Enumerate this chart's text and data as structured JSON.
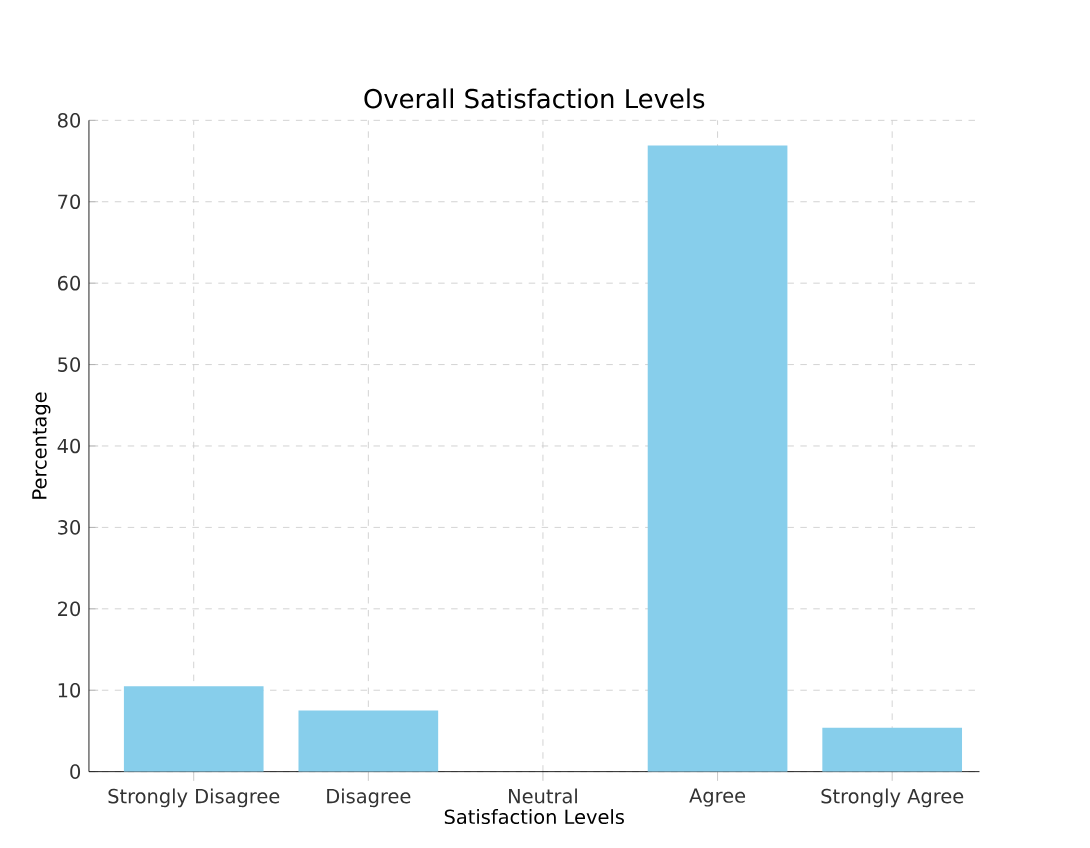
{
  "chart_data": {
    "type": "bar",
    "title": "Overall Satisfaction Levels",
    "xlabel": "Satisfaction Levels",
    "ylabel": "Percentage",
    "categories": [
      "Strongly Disagree",
      "Disagree",
      "Neutral",
      "Agree",
      "Strongly Agree"
    ],
    "values": [
      10.5,
      7.5,
      0,
      76.9,
      5.4
    ],
    "color": "#87ceeb",
    "ylim": [
      0,
      80
    ],
    "yticks": [
      0,
      10,
      20,
      30,
      40,
      50,
      60,
      70,
      80
    ],
    "grid": true
  }
}
